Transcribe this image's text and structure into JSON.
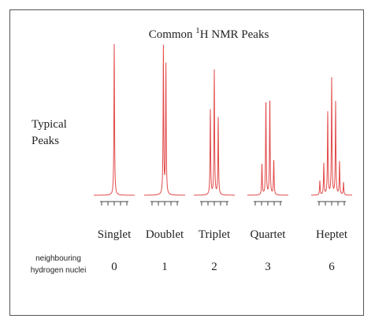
{
  "title": {
    "prefix": "Common",
    "superscript": "1",
    "suffix": "H NMR Peaks"
  },
  "side_label": {
    "lines": [
      "Typical",
      "Peaks"
    ]
  },
  "row_label": {
    "lines": [
      "neighbouring",
      "hydrogen nuclei"
    ]
  },
  "peaks": [
    {
      "name": "Singlet",
      "neighbours": 0
    },
    {
      "name": "Doublet",
      "neighbours": 1
    },
    {
      "name": "Triplet",
      "neighbours": 2
    },
    {
      "name": "Quartet",
      "neighbours": 3
    },
    {
      "name": "Heptet",
      "neighbours": 6
    }
  ]
}
